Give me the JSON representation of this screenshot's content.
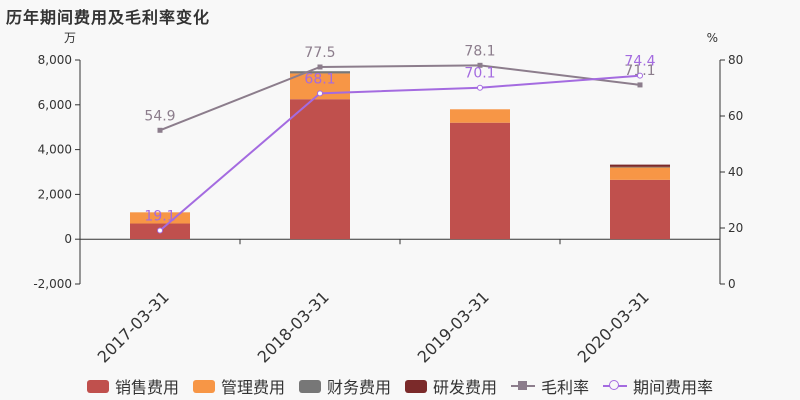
{
  "title": "历年期间费用及毛利率变化",
  "colors": {
    "sales": "#c0504d",
    "admin": "#f79646",
    "finance": "#777777",
    "rd": "#7b2a2a",
    "gross": "#8c7d8c",
    "period": "#a46be0"
  },
  "chart_data": {
    "type": "bar",
    "stacked": true,
    "categories": [
      "2017-03-31",
      "2018-03-31",
      "2019-03-31",
      "2020-03-31"
    ],
    "left_axis": {
      "unit": "万",
      "ylim": [
        -2000,
        8000
      ],
      "ticks": [
        "8,000",
        "6,000",
        "4,000",
        "2,000",
        "0",
        "-2,000"
      ],
      "tick_values": [
        8000,
        6000,
        4000,
        2000,
        0,
        -2000
      ]
    },
    "right_axis": {
      "unit": "%",
      "ylim": [
        0,
        80
      ],
      "ticks": [
        "80",
        "60",
        "40",
        "20",
        "0"
      ],
      "tick_values": [
        80,
        60,
        40,
        20,
        0
      ]
    },
    "series": [
      {
        "name": "销售费用",
        "key": "sales",
        "axis": "left",
        "values": [
          700,
          6250,
          5200,
          2650
        ]
      },
      {
        "name": "管理费用",
        "key": "admin",
        "axis": "left",
        "values": [
          500,
          1150,
          600,
          550
        ]
      },
      {
        "name": "财务费用",
        "key": "finance",
        "axis": "left",
        "values": [
          0,
          100,
          0,
          30
        ]
      },
      {
        "name": "研发费用",
        "key": "rd",
        "axis": "left",
        "values": [
          0,
          0,
          0,
          100
        ]
      }
    ],
    "lines": [
      {
        "name": "毛利率",
        "key": "gross",
        "axis": "right",
        "marker": "square",
        "values": [
          54.9,
          77.5,
          78.1,
          71.1
        ],
        "labels": [
          "54.9",
          "77.5",
          "78.1",
          "71.1"
        ]
      },
      {
        "name": "期间费用率",
        "key": "period",
        "axis": "right",
        "marker": "circle",
        "values": [
          19.1,
          68.1,
          70.1,
          74.4
        ],
        "labels": [
          "19.1",
          "68.1",
          "70.1",
          "74.4"
        ]
      }
    ],
    "legend_position": "bottom"
  }
}
